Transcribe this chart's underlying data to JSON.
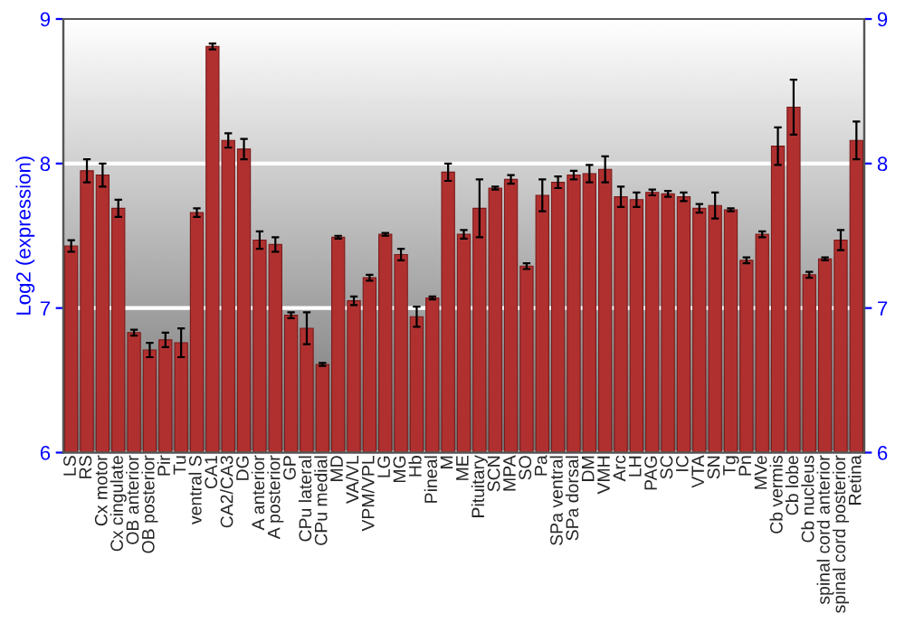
{
  "chart_data": {
    "type": "bar",
    "ylabel": "Log2 (expression)",
    "categories": [
      "LS",
      "RS",
      "Cx motor",
      "Cx cingulate",
      "OB anterior",
      "OB posterior",
      "Pir",
      "Tu",
      "ventral S",
      "CA1",
      "CA2/CA3",
      "DG",
      "A anterior",
      "A posterior",
      "GP",
      "CPu lateral",
      "CPu medial",
      "MD",
      "VA/VL",
      "VPM/VPL",
      "LG",
      "MG",
      "Hb",
      "Pineal",
      "M",
      "ME",
      "Pituitary",
      "SCN",
      "MPA",
      "SO",
      "Pa",
      "SPa ventral",
      "SPa dorsal",
      "DM",
      "VMH",
      "Arc",
      "LH",
      "PAG",
      "SC",
      "IC",
      "VTA",
      "SN",
      "Tg",
      "Pn",
      "MVe",
      "Cb vermis",
      "Cb lobe",
      "Cb nucleus",
      "spinal cord anterior",
      "spinal cord posterior",
      "Retina"
    ],
    "values": [
      7.43,
      7.95,
      7.92,
      7.69,
      6.83,
      6.71,
      6.78,
      6.76,
      7.66,
      8.81,
      8.16,
      8.1,
      7.47,
      7.44,
      6.95,
      6.86,
      6.61,
      7.49,
      7.05,
      7.21,
      7.51,
      7.37,
      6.94,
      7.07,
      7.94,
      7.51,
      7.69,
      7.83,
      7.89,
      7.29,
      7.78,
      7.87,
      7.92,
      7.93,
      7.96,
      7.77,
      7.75,
      7.8,
      7.79,
      7.77,
      7.69,
      7.71,
      7.68,
      7.33,
      7.51,
      8.12,
      8.39,
      7.23,
      7.34,
      7.47,
      8.16
    ],
    "errors": [
      0.04,
      0.08,
      0.08,
      0.06,
      0.02,
      0.05,
      0.05,
      0.1,
      0.03,
      0.02,
      0.05,
      0.07,
      0.06,
      0.05,
      0.02,
      0.11,
      0.01,
      0.01,
      0.03,
      0.02,
      0.01,
      0.04,
      0.07,
      0.01,
      0.06,
      0.03,
      0.2,
      0.01,
      0.03,
      0.02,
      0.11,
      0.04,
      0.03,
      0.06,
      0.09,
      0.07,
      0.05,
      0.02,
      0.02,
      0.03,
      0.03,
      0.09,
      0.01,
      0.02,
      0.02,
      0.13,
      0.19,
      0.02,
      0.01,
      0.07,
      0.13
    ],
    "color": "#b03030",
    "ylim": [
      6,
      9
    ],
    "yticks": [
      6,
      7,
      8,
      9
    ],
    "y2lim": [
      6,
      9
    ],
    "y2ticks": [
      6,
      7,
      8,
      9
    ],
    "grid": "y",
    "legend": false
  }
}
